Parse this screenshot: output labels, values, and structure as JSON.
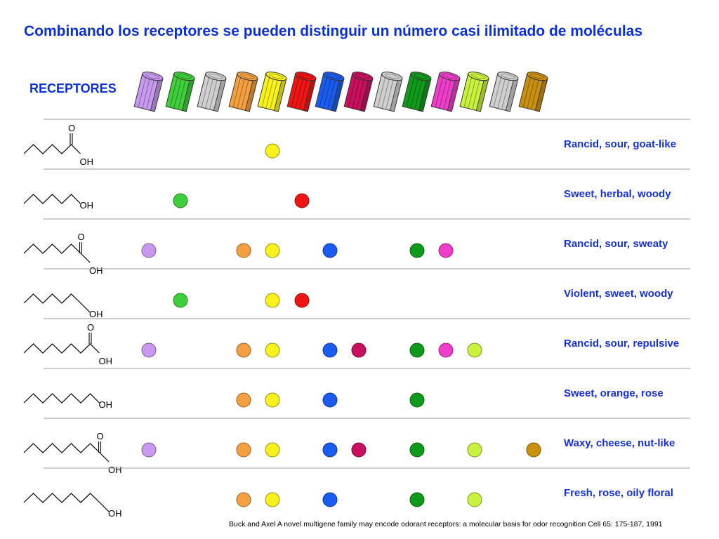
{
  "title": "Combinando los receptores se pueden distinguir un número casi ilimitado de moléculas",
  "receptors_label": "RECEPTORES",
  "receptors": [
    {
      "name": "receptor-lavender",
      "color": "#c79af0"
    },
    {
      "name": "receptor-green",
      "color": "#3ecf3a"
    },
    {
      "name": "receptor-gray",
      "color": "#cfcfcf"
    },
    {
      "name": "receptor-orange",
      "color": "#f5a040"
    },
    {
      "name": "receptor-yellow",
      "color": "#f7f21c"
    },
    {
      "name": "receptor-red",
      "color": "#f01414"
    },
    {
      "name": "receptor-blue",
      "color": "#1a5cef"
    },
    {
      "name": "receptor-crimson",
      "color": "#c9105e"
    },
    {
      "name": "receptor-gray-2",
      "color": "#cfcfcf"
    },
    {
      "name": "receptor-dark-green",
      "color": "#109a1c"
    },
    {
      "name": "receptor-magenta",
      "color": "#ee3ec9"
    },
    {
      "name": "receptor-lime",
      "color": "#c9f23f"
    },
    {
      "name": "receptor-gray-3",
      "color": "#cfcfcf"
    },
    {
      "name": "receptor-gold",
      "color": "#c99010"
    }
  ],
  "molecules": [
    {
      "carbons": 6,
      "acid": true,
      "description": "Rancid, sour, goat-like",
      "active": [
        4
      ]
    },
    {
      "carbons": 6,
      "acid": false,
      "description": "Sweet, herbal, woody",
      "active": [
        1,
        5
      ]
    },
    {
      "carbons": 7,
      "acid": true,
      "description": "Rancid, sour, sweaty",
      "active": [
        0,
        3,
        4,
        6,
        9,
        10
      ]
    },
    {
      "carbons": 7,
      "acid": false,
      "description": "Violent, sweet, woody",
      "active": [
        1,
        4,
        5
      ]
    },
    {
      "carbons": 8,
      "acid": true,
      "description": "Rancid, sour, repulsive",
      "active": [
        0,
        3,
        4,
        6,
        7,
        9,
        10,
        11
      ]
    },
    {
      "carbons": 8,
      "acid": false,
      "description": "Sweet, orange, rose",
      "active": [
        3,
        4,
        6,
        9
      ]
    },
    {
      "carbons": 9,
      "acid": true,
      "description": "Waxy, cheese, nut-like",
      "active": [
        0,
        3,
        4,
        6,
        7,
        9,
        11,
        13
      ]
    },
    {
      "carbons": 9,
      "acid": false,
      "description": "Fresh, rose, oily floral",
      "active": [
        3,
        4,
        6,
        9,
        11
      ]
    }
  ],
  "atom_labels": {
    "oxygen": "O",
    "hydroxyl": "OH"
  },
  "citation": "Buck and Axel A novel multigene family may encode odorant receptors: a molecular basis for odor recognition Cell 65: 175-187, 1991"
}
